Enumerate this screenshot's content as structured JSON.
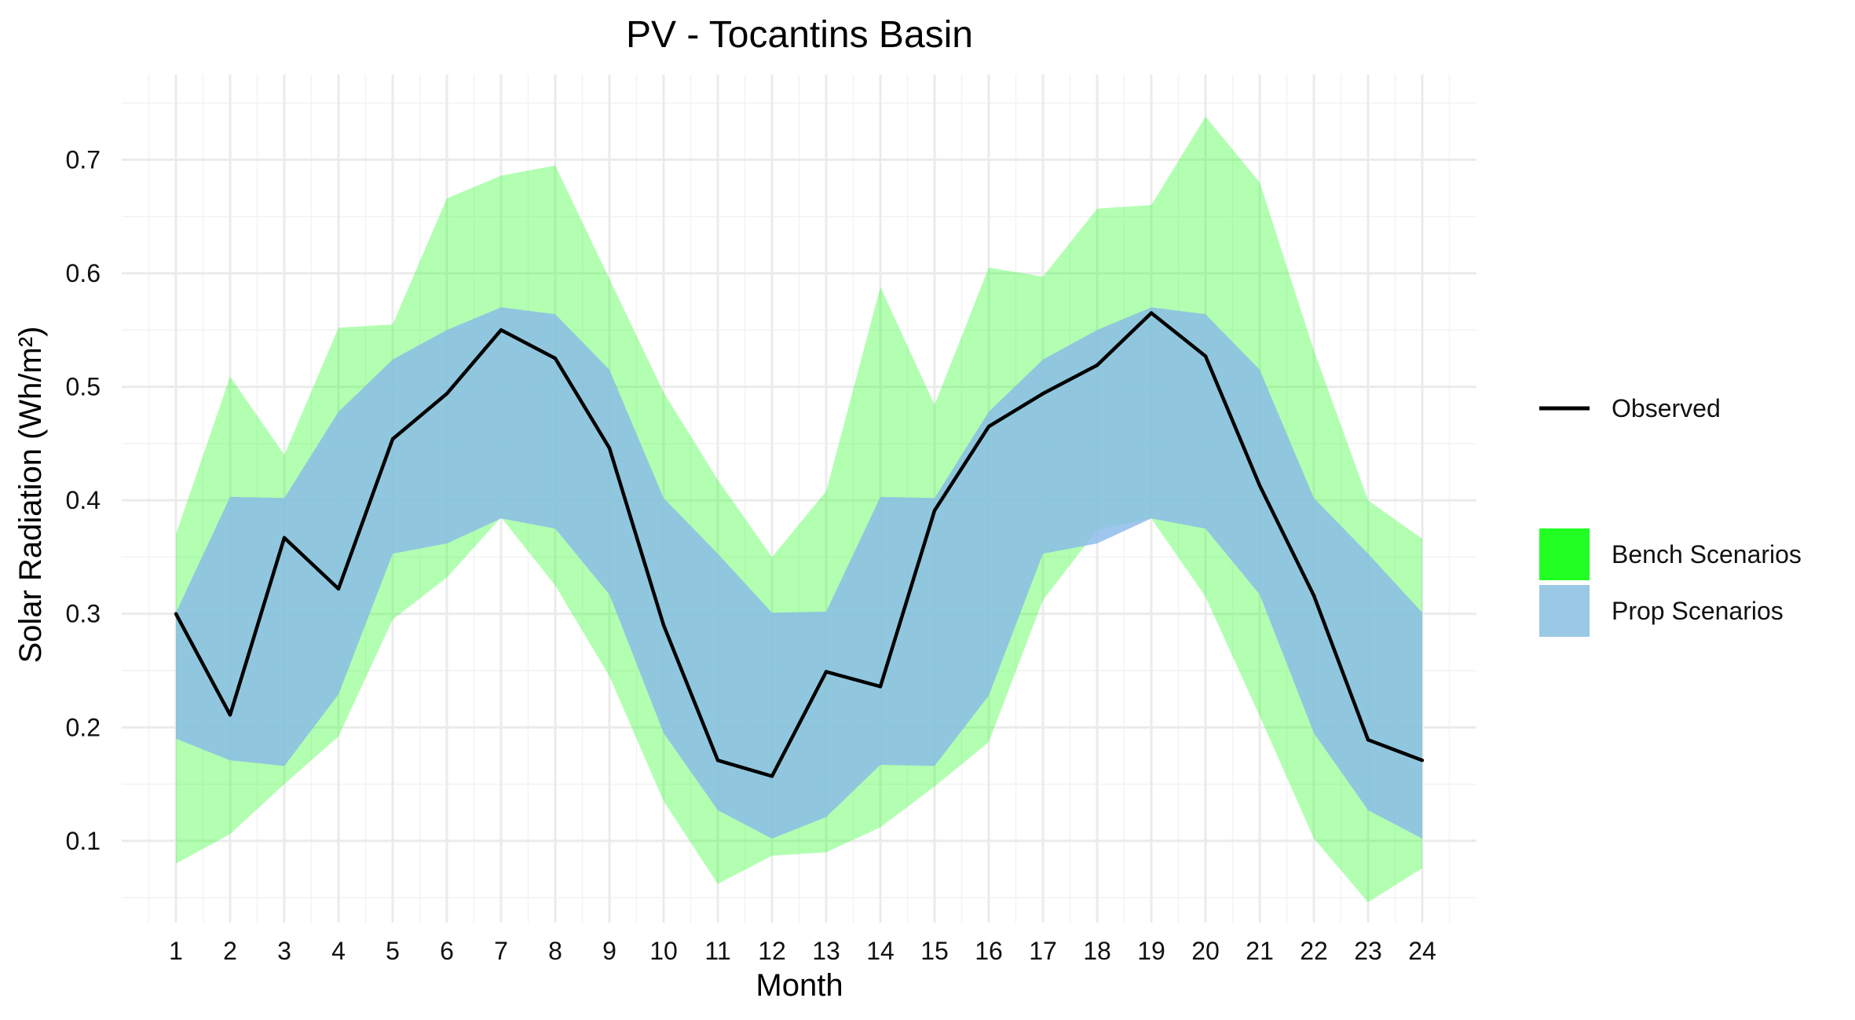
{
  "chart_data": {
    "type": "area",
    "title": "PV - Tocantins Basin",
    "xlabel": "Month",
    "ylabel": "Solar Radiation (Wh/m²)",
    "x": [
      1,
      2,
      3,
      4,
      5,
      6,
      7,
      8,
      9,
      10,
      11,
      12,
      13,
      14,
      15,
      16,
      17,
      18,
      19,
      20,
      21,
      22,
      23,
      24
    ],
    "x_tick_labels": [
      "1",
      "2",
      "3",
      "4",
      "5",
      "6",
      "7",
      "8",
      "9",
      "10",
      "11",
      "12",
      "13",
      "14",
      "15",
      "16",
      "17",
      "18",
      "19",
      "20",
      "21",
      "22",
      "23",
      "24"
    ],
    "y_ticks": [
      0.1,
      0.2,
      0.3,
      0.4,
      0.5,
      0.6,
      0.7
    ],
    "y_tick_labels": [
      "0.1",
      "0.2",
      "0.3",
      "0.4",
      "0.5",
      "0.6",
      "0.7"
    ],
    "xlim": [
      0,
      25
    ],
    "ylim": [
      0.028,
      0.775
    ],
    "grid": true,
    "legend_position": "right",
    "series": [
      {
        "name": "Bench Scenarios",
        "kind": "ribbon",
        "color": "#22ff22",
        "fill": "#22ff22",
        "opacity": 0.35,
        "lower": [
          0.08,
          0.106,
          0.15,
          0.192,
          0.295,
          0.332,
          0.385,
          0.325,
          0.245,
          0.135,
          0.062,
          0.087,
          0.09,
          0.112,
          0.148,
          0.187,
          0.312,
          0.374,
          0.384,
          0.315,
          0.21,
          0.102,
          0.046,
          0.076
        ],
        "upper": [
          0.37,
          0.509,
          0.44,
          0.552,
          0.555,
          0.666,
          0.686,
          0.695,
          0.595,
          0.495,
          0.418,
          0.35,
          0.408,
          0.588,
          0.484,
          0.605,
          0.597,
          0.657,
          0.66,
          0.738,
          0.68,
          0.532,
          0.4,
          0.366
        ]
      },
      {
        "name": "Prop Scenarios",
        "kind": "ribbon",
        "color": "#99c9e4",
        "fill": "#87b9e8",
        "opacity": 0.8,
        "lower": [
          0.19,
          0.171,
          0.166,
          0.229,
          0.353,
          0.362,
          0.384,
          0.375,
          0.317,
          0.195,
          0.127,
          0.102,
          0.121,
          0.167,
          0.166,
          0.228,
          0.353,
          0.362,
          0.384,
          0.375,
          0.317,
          0.195,
          0.127,
          0.102
        ],
        "upper": [
          0.301,
          0.403,
          0.402,
          0.478,
          0.524,
          0.55,
          0.57,
          0.564,
          0.515,
          0.402,
          0.353,
          0.301,
          0.302,
          0.403,
          0.402,
          0.478,
          0.524,
          0.55,
          0.57,
          0.564,
          0.515,
          0.402,
          0.353,
          0.301
        ]
      },
      {
        "name": "Observed",
        "kind": "line",
        "color": "#000000",
        "values": [
          0.3,
          0.211,
          0.367,
          0.322,
          0.454,
          0.494,
          0.55,
          0.525,
          0.446,
          0.29,
          0.171,
          0.157,
          0.249,
          0.236,
          0.391,
          0.465,
          0.494,
          0.519,
          0.565,
          0.527,
          0.413,
          0.316,
          0.189,
          0.171
        ]
      }
    ],
    "legend": {
      "line_entries": [
        "Observed"
      ],
      "fill_entries": [
        "Bench Scenarios",
        "Prop Scenarios"
      ]
    }
  }
}
